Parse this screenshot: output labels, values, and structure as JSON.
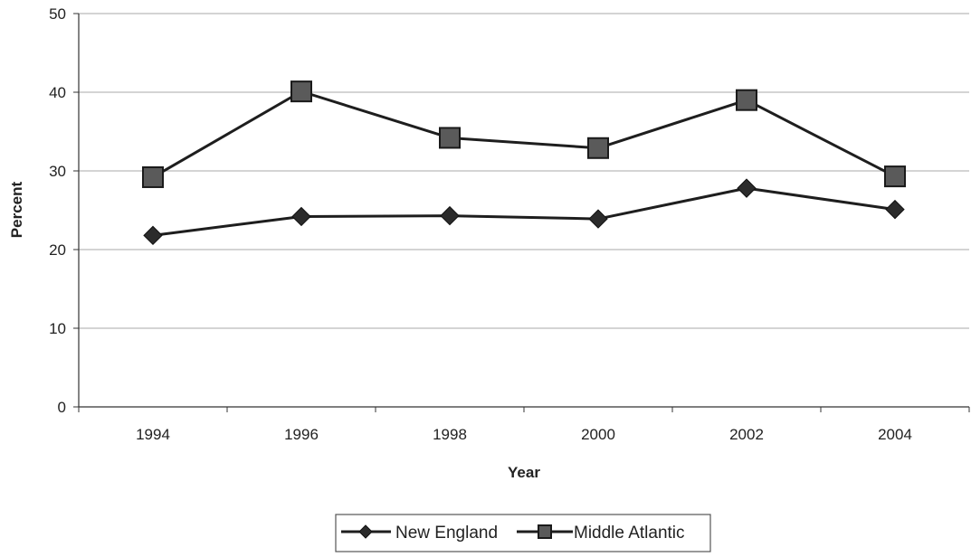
{
  "chart_data": {
    "type": "line",
    "title": "",
    "xlabel": "Year",
    "ylabel": "Percent",
    "categories": [
      "1994",
      "1996",
      "1998",
      "2000",
      "2002",
      "2004"
    ],
    "ylim": [
      0,
      50
    ],
    "yticks": [
      0,
      10,
      20,
      30,
      40,
      50
    ],
    "grid": true,
    "legend_position": "bottom",
    "series": [
      {
        "name": "New England",
        "marker": "diamond",
        "values": [
          21.8,
          24.2,
          24.3,
          23.9,
          27.8,
          25.1
        ]
      },
      {
        "name": "Middle Atlantic",
        "marker": "square",
        "values": [
          29.2,
          40.1,
          34.2,
          32.9,
          39.0,
          29.3
        ]
      }
    ],
    "colors": {
      "line": "#1e1e1e",
      "marker": "#2b2b2b",
      "grid": "#a8a8a8",
      "axis": "#333333"
    }
  }
}
